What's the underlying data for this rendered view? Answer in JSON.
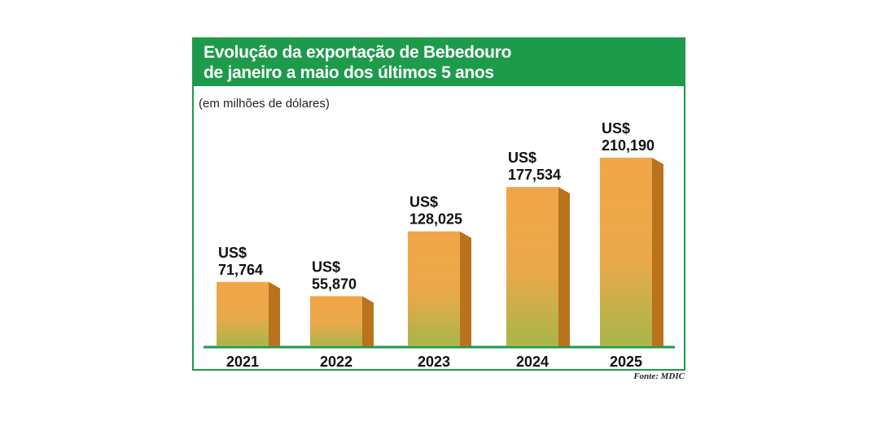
{
  "header": {
    "title_line1": "Evolução da exportação de Bebedouro",
    "title_line2": "de janeiro a maio dos últimos 5 anos",
    "subtitle": "(em milhões de dólares)"
  },
  "source": "Fonte: MDIC",
  "colors": {
    "header": "#1e9a4b",
    "baseline": "#1e9a4b",
    "bar_top": "#f2a548",
    "bar_bottom": "#a7b64a",
    "bar_side": "#b8731c"
  },
  "chart_data": {
    "type": "bar",
    "title": "Evolução da exportação de Bebedouro de janeiro a maio dos últimos 5 anos",
    "unit": "(em milhões de dólares)",
    "categories": [
      "2021",
      "2022",
      "2023",
      "2024",
      "2025"
    ],
    "values": [
      71.764,
      55.87,
      128.025,
      177.534,
      210.19
    ],
    "currency_label": "US$",
    "value_labels": [
      "71,764",
      "55,870",
      "128,025",
      "177,534",
      "210,190"
    ],
    "ylim": [
      0,
      210.19
    ],
    "grid": false,
    "legend": "none"
  }
}
